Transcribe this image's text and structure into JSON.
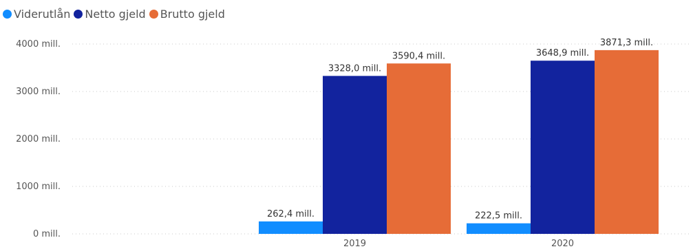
{
  "chart_data": {
    "type": "bar",
    "title": "",
    "xlabel": "",
    "ylabel": "",
    "categories": [
      "2019",
      "2020"
    ],
    "series": [
      {
        "name": "Viderutlån",
        "color": "#118DFF",
        "values": [
          262.4,
          222.5
        ],
        "labels": [
          "262,4 mill.",
          "222,5 mill."
        ]
      },
      {
        "name": "Netto gjeld",
        "color": "#12239E",
        "values": [
          3328.0,
          3648.9
        ],
        "labels": [
          "3328,0 mill.",
          "3648,9 mill."
        ]
      },
      {
        "name": "Brutto gjeld",
        "color": "#E66C37",
        "values": [
          3590.4,
          3871.3
        ],
        "labels": [
          "3590,4 mill.",
          "3871,3 mill."
        ]
      }
    ],
    "ylim": [
      0,
      4000
    ],
    "yticks": [
      0,
      1000,
      2000,
      3000,
      4000
    ],
    "ytick_labels": [
      "0 mill.",
      "1000 mill.",
      "2000 mill.",
      "3000 mill.",
      "4000 mill."
    ],
    "grid": true,
    "legend_position": "top-left"
  }
}
